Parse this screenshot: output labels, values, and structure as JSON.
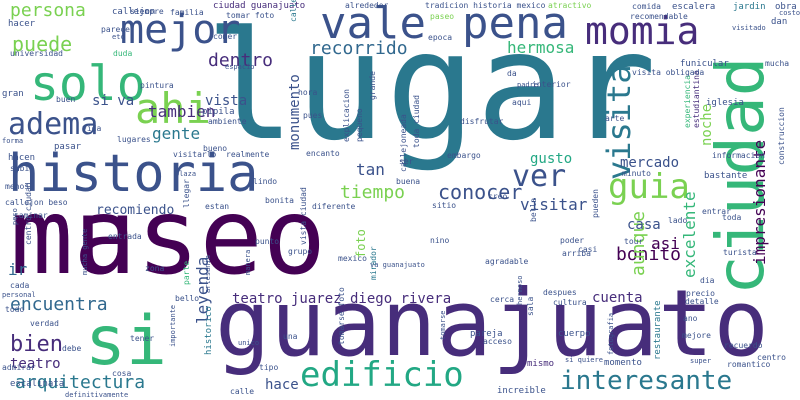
{
  "palette": {
    "teal": "#2a788e",
    "navy": "#3b528b",
    "purple": "#472d7b",
    "dark": "#440154",
    "green": "#35b779",
    "lime": "#7ad151",
    "yellow": "#b5de2b",
    "cyan": "#22a884",
    "blue": "#31688e"
  },
  "words": [
    {
      "text": "lugar"
    },
    {
      "text": "museo"
    },
    {
      "text": "guanajuato"
    },
    {
      "text": "historia"
    },
    {
      "text": "ciudad"
    },
    {
      "text": "ma"
    },
    {
      "text": "si"
    },
    {
      "text": "vale"
    },
    {
      "text": "pena"
    },
    {
      "text": "momia"
    },
    {
      "text": "solo"
    },
    {
      "text": "mejor"
    },
    {
      "text": "ahi"
    },
    {
      "text": "adema"
    },
    {
      "text": "guia"
    },
    {
      "text": "visita"
    },
    {
      "text": "ver"
    },
    {
      "text": "edificio"
    },
    {
      "text": "interesante"
    },
    {
      "text": "conocer"
    },
    {
      "text": "tiempo"
    },
    {
      "text": "visitar"
    },
    {
      "text": "mercado"
    },
    {
      "text": "bonito"
    },
    {
      "text": "aunque"
    },
    {
      "text": "impresionante"
    },
    {
      "text": "excelente"
    },
    {
      "text": "teatro juarez diego rivera"
    },
    {
      "text": "encuentra"
    },
    {
      "text": "arquitectura"
    },
    {
      "text": "bien"
    },
    {
      "text": "puede"
    },
    {
      "text": "gente"
    },
    {
      "text": "tambien"
    },
    {
      "text": "dentro"
    },
    {
      "text": "recorrido"
    },
    {
      "text": "hermosa"
    },
    {
      "text": "persona"
    },
    {
      "text": "recomiendo"
    },
    {
      "text": "leyenda"
    },
    {
      "text": "monumento"
    },
    {
      "text": "noche"
    },
    {
      "text": "casa"
    },
    {
      "text": "cuenta"
    },
    {
      "text": "asi"
    },
    {
      "text": "si va"
    },
    {
      "text": "vista"
    },
    {
      "text": "tan"
    },
    {
      "text": "gusto"
    },
    {
      "text": "hace"
    },
    {
      "text": "teatro"
    },
    {
      "text": "ir"
    },
    {
      "text": "foto"
    },
    {
      "text": "callejon"
    },
    {
      "text": "historico"
    },
    {
      "text": "mismo"
    },
    {
      "text": "increible"
    },
    {
      "text": "pareja"
    },
    {
      "text": "restaurante"
    },
    {
      "text": "cuerpo"
    },
    {
      "text": "momento"
    },
    {
      "text": "escalinata"
    },
    {
      "text": "parte"
    },
    {
      "text": "pipila"
    },
    {
      "text": "experiencia"
    },
    {
      "text": "estudiantina"
    },
    {
      "text": "iglesia"
    },
    {
      "text": "funicular"
    },
    {
      "text": "bastante"
    },
    {
      "text": "informacion"
    },
    {
      "text": "construccion"
    },
    {
      "text": "escalera"
    },
    {
      "text": "jardin"
    },
    {
      "text": "obra"
    },
    {
      "text": "dan"
    },
    {
      "text": "mucha"
    },
    {
      "text": "atractivo"
    },
    {
      "text": "comida"
    },
    {
      "text": "recomendable"
    },
    {
      "text": "paseo"
    },
    {
      "text": "epoca"
    },
    {
      "text": "alrededor"
    },
    {
      "text": "tradicion historia mexico"
    },
    {
      "text": "ciudad guanajuato"
    },
    {
      "text": "tomar foto"
    },
    {
      "text": "familia"
    },
    {
      "text": "siempre"
    },
    {
      "text": "callejones"
    },
    {
      "text": "parece"
    },
    {
      "text": "hacer"
    },
    {
      "text": "universidad"
    },
    {
      "text": "duda"
    },
    {
      "text": "pintura"
    },
    {
      "text": "comer"
    },
    {
      "text": "espacio"
    },
    {
      "text": "etc"
    },
    {
      "text": "gran"
    },
    {
      "text": "buen"
    },
    {
      "text": "vida"
    },
    {
      "text": "lugares"
    },
    {
      "text": "pasar"
    },
    {
      "text": "hacen"
    },
    {
      "text": "subir"
    },
    {
      "text": "menos"
    },
    {
      "text": "callejon beso"
    },
    {
      "text": "caminar"
    },
    {
      "text": "llegar"
    },
    {
      "text": "centro ciudad"
    },
    {
      "text": "cada"
    },
    {
      "text": "todo"
    },
    {
      "text": "verdad"
    },
    {
      "text": "debe"
    },
    {
      "text": "admirar"
    },
    {
      "text": "cosa"
    },
    {
      "text": "calle"
    },
    {
      "text": "tipo"
    },
    {
      "text": "bello"
    },
    {
      "text": "tener"
    },
    {
      "text": "mirador"
    },
    {
      "text": "una"
    },
    {
      "text": "acceso"
    },
    {
      "text": "agradable"
    },
    {
      "text": "poder"
    },
    {
      "text": "casi"
    },
    {
      "text": "arriba"
    },
    {
      "text": "tour"
    },
    {
      "text": "lado"
    },
    {
      "text": "entrar"
    },
    {
      "text": "toda"
    },
    {
      "text": "turista"
    },
    {
      "text": "precio"
    },
    {
      "text": "detalle"
    },
    {
      "text": "mejore"
    },
    {
      "text": "centro"
    },
    {
      "text": "romantico"
    },
    {
      "text": "recuerdo"
    },
    {
      "text": "dia"
    },
    {
      "text": "ano"
    },
    {
      "text": "despues"
    },
    {
      "text": "cultura"
    },
    {
      "text": "cerca"
    },
    {
      "text": "sala"
    },
    {
      "text": "nino"
    },
    {
      "text": "sitio"
    },
    {
      "text": "creo"
    },
    {
      "text": "bella"
    },
    {
      "text": "buena"
    },
    {
      "text": "pueden"
    },
    {
      "text": "minuto"
    },
    {
      "text": "embargo"
    },
    {
      "text": "ser"
    },
    {
      "text": "encanto"
    },
    {
      "text": "lindo"
    },
    {
      "text": "bonita"
    },
    {
      "text": "diferente"
    },
    {
      "text": "punto"
    },
    {
      "text": "grupo"
    },
    {
      "text": "vista ciudad"
    },
    {
      "text": "realmente"
    },
    {
      "text": "visitarlo"
    },
    {
      "text": "bueno"
    },
    {
      "text": "ambiente"
    },
    {
      "text": "hora"
    },
    {
      "text": "pues"
    },
    {
      "text": "explicacion"
    },
    {
      "text": "pequeno"
    },
    {
      "text": "grande"
    },
    {
      "text": "callejoneada"
    },
    {
      "text": "toda ciudad"
    },
    {
      "text": "disfrutar"
    },
    {
      "text": "da"
    },
    {
      "text": "interior"
    },
    {
      "text": "aqui"
    },
    {
      "text": "arte"
    },
    {
      "text": "visita obligada"
    },
    {
      "text": "entrada"
    },
    {
      "text": "zona"
    },
    {
      "text": "mexico"
    },
    {
      "text": "va guanajuato"
    },
    {
      "text": "estan"
    },
    {
      "text": "plaza"
    },
    {
      "text": "manera"
    },
    {
      "text": "artesania"
    },
    {
      "text": "importante"
    },
    {
      "text": "unico"
    },
    {
      "text": "tomarse foto"
    },
    {
      "text": "tomarse"
    },
    {
      "text": "si quiere"
    },
    {
      "text": "fotografia"
    },
    {
      "text": "hermoso"
    },
    {
      "text": "padre"
    },
    {
      "text": "mucha gente"
    },
    {
      "text": "personal"
    },
    {
      "text": "peso"
    },
    {
      "text": "forma"
    },
    {
      "text": "definitivamente"
    },
    {
      "text": "super"
    },
    {
      "text": "costo"
    },
    {
      "text": "visitado"
    }
  ]
}
